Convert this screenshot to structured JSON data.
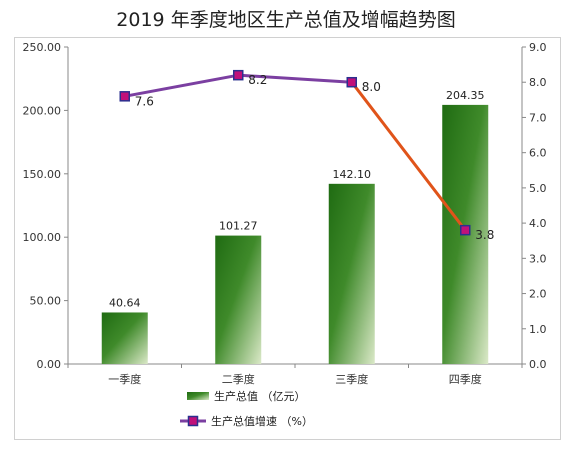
{
  "chart_data": {
    "type": "bar+line",
    "title": "2019 年季度地区生产总值及增幅趋势图",
    "categories": [
      "一季度",
      "二季度",
      "三季度",
      "四季度"
    ],
    "series": [
      {
        "name": "生产总值 （亿元）",
        "type": "bar",
        "axis": "left",
        "values": [
          40.64,
          101.27,
          142.1,
          204.35
        ],
        "labels": [
          "40.64",
          "101.27",
          "142.10",
          "204.35"
        ]
      },
      {
        "name": "生产总值增速 （%）",
        "type": "line",
        "axis": "right",
        "values": [
          7.6,
          8.2,
          8.0,
          3.8
        ],
        "labels": [
          "7.6",
          "8.2",
          "8.0",
          "3.8"
        ]
      }
    ],
    "y_left": {
      "lim": [
        0,
        250
      ],
      "ticks": [
        0,
        50,
        100,
        150,
        200,
        250
      ],
      "tick_labels": [
        "0.00",
        "50.00",
        "100.00",
        "150.00",
        "200.00",
        "250.00"
      ]
    },
    "y_right": {
      "lim": [
        0,
        9
      ],
      "ticks": [
        0,
        1,
        2,
        3,
        4,
        5,
        6,
        7,
        8,
        9
      ],
      "tick_labels": [
        "0.0",
        "1.0",
        "2.0",
        "3.0",
        "4.0",
        "5.0",
        "6.0",
        "7.0",
        "8.0",
        "9.0"
      ]
    },
    "grid": false,
    "legend": "bottom",
    "colors": {
      "bar_dark": "#1f6b12",
      "bar_light": "#dbe9c8",
      "line_main": "#7b3fa1",
      "line_drop": "#e0541a",
      "marker_fill": "#c0107a",
      "marker_edge": "#2b2f8f"
    }
  }
}
